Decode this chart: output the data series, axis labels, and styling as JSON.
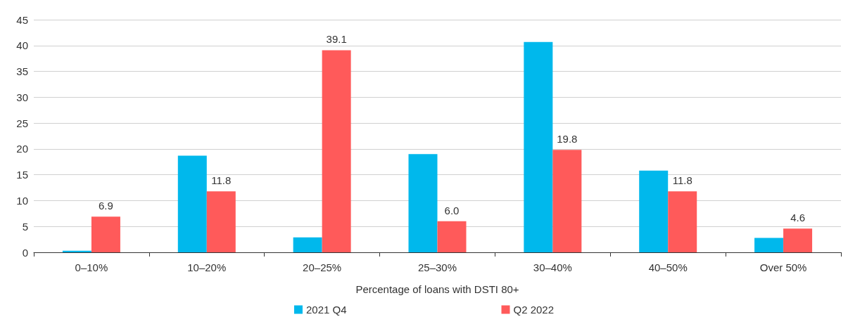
{
  "chart_data": {
    "type": "bar",
    "xlabel": "Percentage of loans with DSTI 80+",
    "categories": [
      "0–10%",
      "10–20%",
      "20–25%",
      "25–30%",
      "30–40%",
      "40–50%",
      "Over 50%"
    ],
    "series": [
      {
        "name": "2021 Q4",
        "color": "#00b8ec",
        "values": [
          0.3,
          18.7,
          2.9,
          19.0,
          40.7,
          15.8,
          2.8
        ]
      },
      {
        "name": "Q2 2022",
        "color": "#ff5a5a",
        "values": [
          6.9,
          11.8,
          39.1,
          6.0,
          19.8,
          11.8,
          4.6
        ],
        "value_labels": [
          "6.9",
          "11.8",
          "39.1",
          "6.0",
          "19.8",
          "11.8",
          "4.6"
        ]
      }
    ],
    "ylim": [
      0,
      45
    ],
    "yticks": [
      0,
      5,
      10,
      15,
      20,
      25,
      30,
      35,
      40,
      45
    ],
    "grid": "y",
    "legend": "bottom"
  }
}
